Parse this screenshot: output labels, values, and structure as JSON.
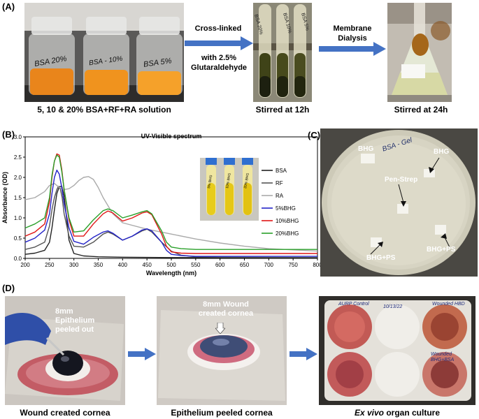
{
  "panel_a": {
    "letter": "(A)",
    "vial_labels": [
      "BSA 20%",
      "BSA - 10%",
      "BSA 5%"
    ],
    "tube_labels": [
      "BSA 20%",
      "BSA 10%",
      "BSA 5%"
    ],
    "caption_1": "5, 10 & 20% BSA+RF+RA solution",
    "arrow_1_line1": "Cross-linked",
    "arrow_1_line2": "with 2.5%",
    "arrow_1_line3": "Glutaraldehyde",
    "caption_2": "Stirred at 12h",
    "arrow_2_line1": "Membrane",
    "arrow_2_line2": "Dialysis",
    "caption_3": "Stirred at 24h"
  },
  "panel_b": {
    "letter": "(B)",
    "inset_labels": [
      "5% BHG",
      "10% BHG",
      "20% BHG"
    ]
  },
  "chart_data": {
    "type": "line",
    "title": "UV-Visible spectrum",
    "xlabel": "Wavelength (nm)",
    "ylabel": "Absorbance (OD)",
    "xlim": [
      200,
      800
    ],
    "ylim": [
      0,
      3.0
    ],
    "xticks": [
      200,
      250,
      300,
      350,
      400,
      450,
      500,
      550,
      600,
      650,
      700,
      750,
      800
    ],
    "yticks": [
      0,
      0.5,
      1.0,
      1.5,
      2.0,
      2.5,
      3.0
    ],
    "xtick_labels": [
      "200",
      "250",
      "300",
      "350",
      "400",
      "450",
      "500",
      "550",
      "600",
      "650",
      "700",
      "750",
      "800"
    ],
    "ytick_labels": [
      "0.0",
      "0.5",
      "1.0",
      "1.5",
      "2.0",
      "2.5",
      "3.0"
    ],
    "legend_position": "right",
    "series": [
      {
        "name": "BSA",
        "color": "#222222",
        "x": [
          200,
          220,
          240,
          250,
          255,
          260,
          265,
          270,
          275,
          280,
          285,
          290,
          300,
          320,
          350,
          400,
          500,
          600,
          800
        ],
        "y": [
          0.1,
          0.13,
          0.2,
          0.4,
          0.75,
          1.2,
          1.6,
          1.77,
          1.78,
          1.55,
          1.0,
          0.45,
          0.12,
          0.06,
          0.04,
          0.03,
          0.02,
          0.02,
          0.02
        ]
      },
      {
        "name": "RF",
        "color": "#555555",
        "x": [
          200,
          220,
          240,
          250,
          255,
          260,
          265,
          268,
          272,
          276,
          280,
          290,
          300,
          320,
          340,
          360,
          370,
          380,
          400,
          420,
          440,
          450,
          460,
          480,
          500,
          520,
          550,
          600,
          800
        ],
        "y": [
          0.22,
          0.28,
          0.4,
          0.8,
          1.2,
          1.5,
          1.7,
          1.78,
          1.72,
          1.5,
          1.1,
          0.55,
          0.3,
          0.28,
          0.4,
          0.6,
          0.65,
          0.6,
          0.45,
          0.55,
          0.68,
          0.72,
          0.65,
          0.4,
          0.18,
          0.08,
          0.04,
          0.03,
          0.02
        ]
      },
      {
        "name": "RA",
        "color": "#aaaaaa",
        "x": [
          200,
          220,
          240,
          250,
          260,
          270,
          280,
          290,
          300,
          310,
          320,
          330,
          340,
          350,
          360,
          380,
          400,
          450,
          500,
          550,
          600,
          650,
          700,
          800
        ],
        "y": [
          1.45,
          1.5,
          1.65,
          1.8,
          1.85,
          1.75,
          1.7,
          1.72,
          1.8,
          1.92,
          2.0,
          2.02,
          1.95,
          1.75,
          1.5,
          1.1,
          0.88,
          0.72,
          0.6,
          0.48,
          0.38,
          0.3,
          0.24,
          0.18
        ]
      },
      {
        "name": "5%BHG",
        "color": "#2323c8",
        "x": [
          200,
          220,
          240,
          250,
          255,
          260,
          265,
          270,
          275,
          280,
          290,
          300,
          320,
          340,
          360,
          370,
          380,
          400,
          420,
          440,
          450,
          460,
          480,
          490,
          500,
          520,
          550,
          600,
          700,
          800
        ],
        "y": [
          0.4,
          0.5,
          0.7,
          1.1,
          1.6,
          2.0,
          2.18,
          2.08,
          1.75,
          1.35,
          0.75,
          0.42,
          0.35,
          0.52,
          0.65,
          0.68,
          0.62,
          0.45,
          0.55,
          0.7,
          0.73,
          0.68,
          0.4,
          0.2,
          0.1,
          0.07,
          0.05,
          0.05,
          0.05,
          0.05
        ]
      },
      {
        "name": "10%BHG",
        "color": "#e01616",
        "x": [
          200,
          220,
          240,
          250,
          255,
          260,
          265,
          270,
          275,
          280,
          290,
          300,
          320,
          340,
          360,
          370,
          380,
          400,
          420,
          440,
          450,
          460,
          480,
          490,
          500,
          520,
          550,
          600,
          700,
          800
        ],
        "y": [
          0.55,
          0.65,
          0.85,
          1.4,
          2.0,
          2.4,
          2.58,
          2.55,
          2.2,
          1.7,
          0.95,
          0.55,
          0.55,
          0.85,
          1.1,
          1.17,
          1.12,
          0.92,
          1.0,
          1.12,
          1.15,
          1.08,
          0.6,
          0.3,
          0.16,
          0.13,
          0.12,
          0.12,
          0.12,
          0.12
        ]
      },
      {
        "name": "20%BHG",
        "color": "#2aa02a",
        "x": [
          200,
          220,
          240,
          250,
          255,
          260,
          265,
          270,
          275,
          280,
          290,
          300,
          320,
          340,
          360,
          370,
          380,
          400,
          420,
          440,
          450,
          460,
          480,
          490,
          500,
          520,
          550,
          600,
          700,
          800
        ],
        "y": [
          0.75,
          0.85,
          1.0,
          1.5,
          2.05,
          2.4,
          2.55,
          2.5,
          2.15,
          1.7,
          1.0,
          0.65,
          0.68,
          0.95,
          1.18,
          1.22,
          1.18,
          1.0,
          1.07,
          1.15,
          1.18,
          1.1,
          0.68,
          0.4,
          0.28,
          0.24,
          0.22,
          0.22,
          0.22,
          0.22
        ]
      }
    ]
  },
  "panel_c": {
    "letter": "(C)",
    "handwritten": "BSA - Gel",
    "labels": [
      "BHG",
      "BHG",
      "Pen-Strep",
      "BHG+PS",
      "BHG+PS"
    ]
  },
  "panel_d": {
    "letter": "(D)",
    "photo1_text_line1": "8mm",
    "photo1_text_line2": "Epithelium",
    "photo1_text_line3": "peeled out",
    "caption_1": "Wound created cornea",
    "photo2_text_line1": "8mm Wound",
    "photo2_text_line2": "created cornea",
    "caption_2": "Epithelium peeled cornea",
    "plate_labels": [
      "AURP Control",
      "10/13/22",
      "Wounded HBD",
      "Wounded BHG+BSA"
    ],
    "caption_3_italic": "Ex vivo",
    "caption_3_rest": " organ culture"
  },
  "colors": {
    "arrow": "#4472c4",
    "orange_solution": "#f29a1e",
    "amber_gel": "#a5671a",
    "tissue_red": "#c8556a"
  }
}
